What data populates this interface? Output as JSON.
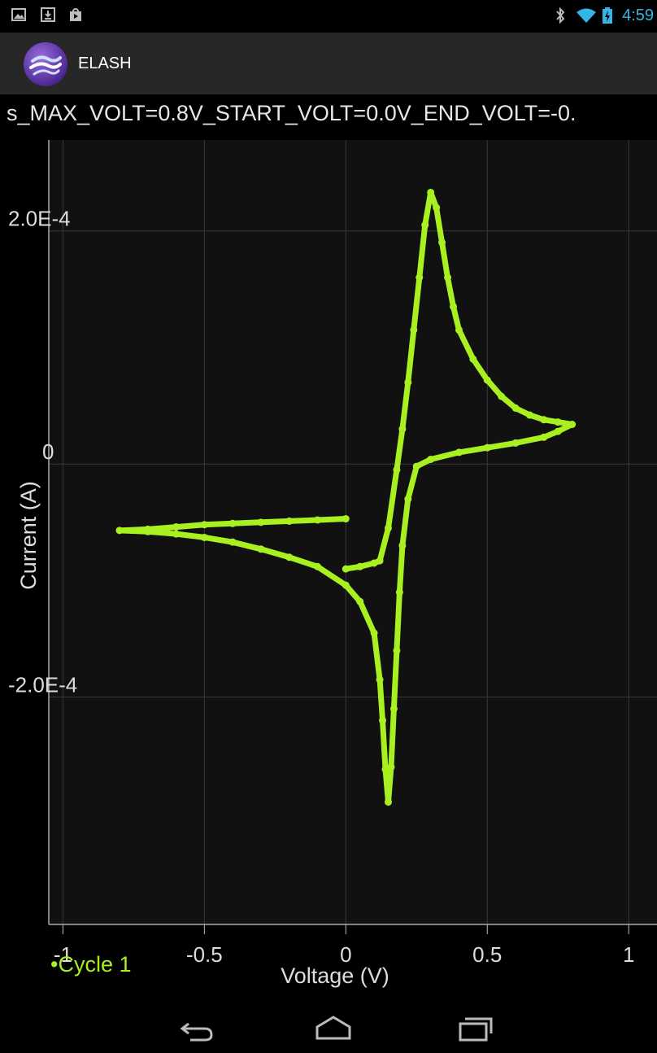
{
  "status_bar": {
    "time": "4:59",
    "left_icons": [
      "picture-icon",
      "download-icon",
      "store-icon"
    ],
    "right_icons": [
      "bluetooth-icon",
      "wifi-icon",
      "battery-charging-icon"
    ],
    "accent": "#35b5e5"
  },
  "action_bar": {
    "title": "ELASH",
    "icon": "app-logo-icon"
  },
  "chart_data": {
    "type": "scatter",
    "title": "s_MAX_VOLT=0.8V_START_VOLT=0.0V_END_VOLT=-0.",
    "xlabel": "Voltage (V)",
    "ylabel": "Current (A)",
    "xlim": [
      -1.05,
      1.1
    ],
    "ylim": [
      -0.000395,
      0.000278
    ],
    "x_ticks": [
      -1,
      -0.5,
      0,
      0.5,
      1
    ],
    "x_tick_labels": [
      "-1",
      "-0.5",
      "0",
      "0.5",
      "1"
    ],
    "y_ticks": [
      0.0002,
      0,
      -0.0002
    ],
    "y_tick_labels": [
      "2.0E-4",
      "0",
      "-2.0E-4"
    ],
    "grid": true,
    "legend_position": "bottom-left",
    "series": [
      {
        "name": "Cycle 1",
        "color": "#a8f020",
        "x": [
          0.0,
          0.05,
          0.1,
          0.12,
          0.15,
          0.18,
          0.2,
          0.22,
          0.24,
          0.26,
          0.28,
          0.3,
          0.32,
          0.34,
          0.36,
          0.38,
          0.4,
          0.45,
          0.5,
          0.55,
          0.6,
          0.65,
          0.7,
          0.75,
          0.8,
          0.75,
          0.7,
          0.6,
          0.5,
          0.4,
          0.3,
          0.25,
          0.22,
          0.2,
          0.19,
          0.18,
          0.17,
          0.16,
          0.15,
          0.14,
          0.13,
          0.12,
          0.1,
          0.05,
          0.0,
          -0.1,
          -0.2,
          -0.3,
          -0.4,
          -0.5,
          -0.6,
          -0.7,
          -0.8,
          -0.7,
          -0.6,
          -0.5,
          -0.4,
          -0.3,
          -0.2,
          -0.1,
          0.0
        ],
        "y": [
          -9e-05,
          -8.8e-05,
          -8.5e-05,
          -8.3e-05,
          -5.5e-05,
          -5e-06,
          3e-05,
          7e-05,
          0.000115,
          0.00016,
          0.000205,
          0.000233,
          0.00022,
          0.00019,
          0.00016,
          0.000135,
          0.000115,
          9e-05,
          7.2e-05,
          5.8e-05,
          4.8e-05,
          4.2e-05,
          3.8e-05,
          3.6e-05,
          3.4e-05,
          2.8e-05,
          2.3e-05,
          1.8e-05,
          1.4e-05,
          1e-05,
          4e-06,
          -2e-06,
          -3e-05,
          -7e-05,
          -0.00011,
          -0.00016,
          -0.00021,
          -0.00026,
          -0.00029,
          -0.000262,
          -0.00022,
          -0.000185,
          -0.000145,
          -0.000118,
          -0.000104,
          -8.8e-05,
          -8e-05,
          -7.3e-05,
          -6.7e-05,
          -6.3e-05,
          -6e-05,
          -5.8e-05,
          -5.7e-05,
          -5.6e-05,
          -5.4e-05,
          -5.2e-05,
          -5.1e-05,
          -5e-05,
          -4.9e-05,
          -4.8e-05,
          -4.7e-05
        ]
      }
    ]
  },
  "nav_bar": {
    "buttons": [
      "back-icon",
      "home-icon",
      "recent-apps-icon"
    ]
  }
}
